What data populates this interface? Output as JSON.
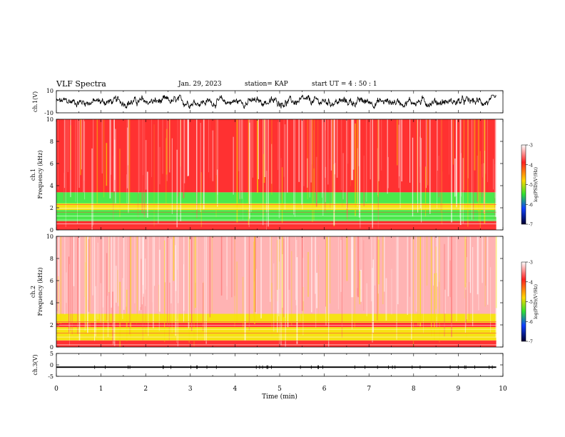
{
  "header": {
    "title": "VLF Spectra",
    "date": "Jan. 29, 2023",
    "station": "station= KAP",
    "start_time": "start  UT  =   4 : 50 : 1"
  },
  "chart_data": [
    {
      "type": "line",
      "panel": "ch1-waveform",
      "ylabel": "ch.1(V)",
      "ylim": [
        -10,
        10
      ],
      "yticks": [
        "10",
        "-10"
      ],
      "xlim": [
        0,
        10
      ],
      "data_end_min": 9.85,
      "amplitude_range_v": [
        -6,
        6
      ]
    },
    {
      "type": "heatmap",
      "panel": "ch1-spectrogram",
      "ylabel": "ch.1 Frequency  (kHz)",
      "ylim": [
        0,
        10
      ],
      "yticks": [
        "0",
        "2",
        "4",
        "6",
        "8",
        "10"
      ],
      "xlim": [
        0,
        10
      ],
      "data_end_min": 9.85,
      "bands_khz": [
        {
          "from": 0.0,
          "to": 0.8,
          "level": "mixed"
        },
        {
          "from": 0.8,
          "to": 1.8,
          "level": "green"
        },
        {
          "from": 1.8,
          "to": 2.4,
          "level": "yellow"
        },
        {
          "from": 2.4,
          "to": 3.4,
          "level": "green"
        },
        {
          "from": 3.4,
          "to": 10.0,
          "level": "red"
        }
      ],
      "colorbar": {
        "label": "log(PSD)(V²/Hz)",
        "ticks": [
          "-3",
          "-4",
          "-5",
          "-6",
          "-7"
        ],
        "range": [
          -7,
          -3
        ]
      }
    },
    {
      "type": "heatmap",
      "panel": "ch2-spectrogram",
      "ylabel": "ch.2 Frequency  (kHz)",
      "ylim": [
        0,
        10
      ],
      "yticks": [
        "0",
        "2",
        "4",
        "6",
        "8",
        "10"
      ],
      "xlim": [
        0,
        10
      ],
      "data_end_min": 9.85,
      "bands_khz": [
        {
          "from": 0.0,
          "to": 0.6,
          "level": "mixed"
        },
        {
          "from": 0.6,
          "to": 1.8,
          "level": "yellow"
        },
        {
          "from": 1.8,
          "to": 2.2,
          "level": "red"
        },
        {
          "from": 2.2,
          "to": 3.0,
          "level": "yellow"
        },
        {
          "from": 3.0,
          "to": 10.0,
          "level": "light-red"
        }
      ],
      "colorbar": {
        "label": "log(PSD)(V²/Hz)",
        "ticks": [
          "-3",
          "-4",
          "-5",
          "-6",
          "-7"
        ],
        "range": [
          -7,
          -3
        ]
      }
    },
    {
      "type": "line",
      "panel": "ch3-waveform",
      "ylabel": "ch.3(V)",
      "ylim": [
        -5,
        5
      ],
      "yticks": [
        "5",
        "0",
        "-5"
      ],
      "xlim": [
        0,
        10
      ],
      "data_end_min": 9.85,
      "level_v": -1.0,
      "amplitude_range_v": [
        -1.3,
        -0.7
      ],
      "xlabel": "Time  (min)",
      "xticks": [
        "0",
        "1",
        "2",
        "3",
        "4",
        "5",
        "6",
        "7",
        "8",
        "9",
        "10"
      ]
    }
  ],
  "colors": {
    "red": "#ff2020",
    "light_red": "#ff9a9a",
    "yellow": "#f5e000",
    "green": "#3ce63c",
    "trace": "#000000"
  }
}
